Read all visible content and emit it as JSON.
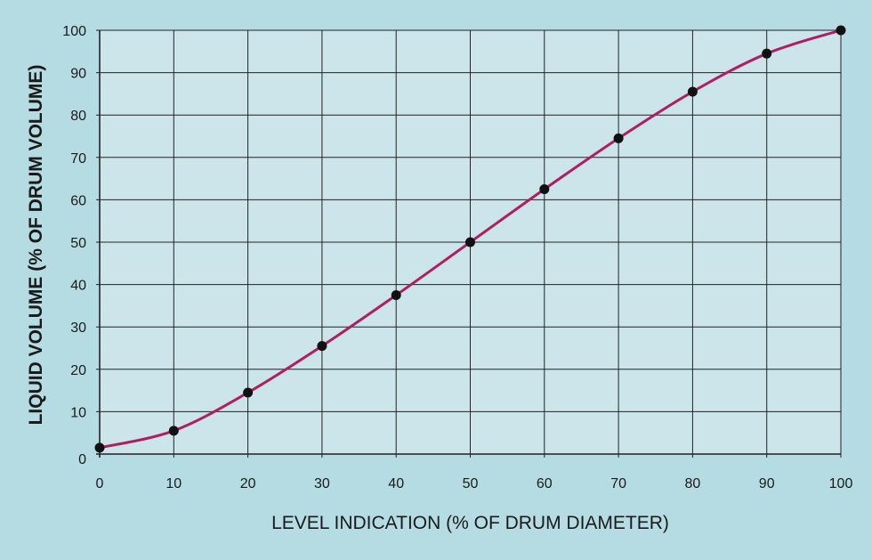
{
  "chart_data": {
    "type": "line",
    "title": "",
    "xlabel": "LEVEL INDICATION (% OF DRUM DIAMETER)",
    "ylabel": "LIQUID VOLUME (% OF DRUM VOLUME)",
    "xlim": [
      0,
      100
    ],
    "ylim": [
      0,
      100
    ],
    "xticks": [
      0,
      10,
      20,
      30,
      40,
      50,
      60,
      70,
      80,
      90,
      100
    ],
    "yticks": [
      0,
      10,
      20,
      30,
      40,
      50,
      60,
      70,
      80,
      90,
      100
    ],
    "x_tick_labels": [
      "0",
      "10",
      "20",
      "30",
      "40",
      "50",
      "60",
      "70",
      "80",
      "90",
      "100"
    ],
    "y_tick_labels": [
      "0",
      "10",
      "20",
      "30",
      "40",
      "50",
      "60",
      "70",
      "80",
      "90",
      "100"
    ],
    "grid": true,
    "series": [
      {
        "x": [
          0,
          10,
          20,
          30,
          40,
          50,
          60,
          70,
          80,
          90,
          100
        ],
        "values": [
          1.5,
          5.5,
          14.5,
          25.5,
          37.5,
          50,
          62.5,
          74.5,
          85.5,
          94.5,
          100
        ],
        "color": "#b01e62",
        "marker_color": "#111111"
      }
    ]
  },
  "colors": {
    "background": "#b5dce2",
    "plot_area": "#cbe5ea",
    "grid": "#222222",
    "curve": "#b01e62",
    "marker": "#111111"
  }
}
